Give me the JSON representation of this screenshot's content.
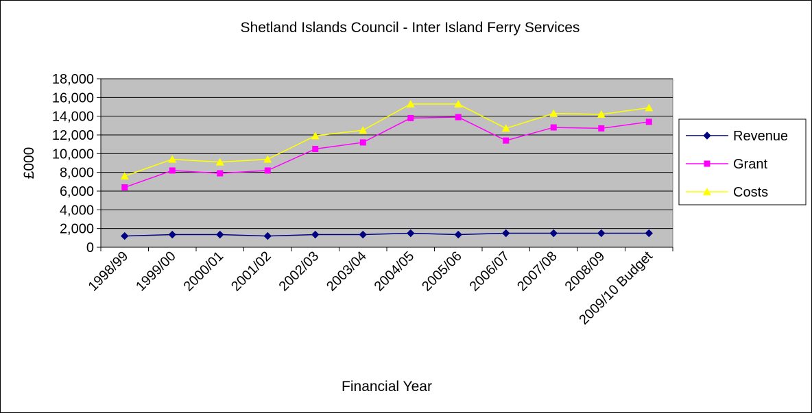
{
  "chart_data": {
    "type": "line",
    "title": "Shetland Islands Council - Inter Island  Ferry Services",
    "xlabel": "Financial Year",
    "ylabel": "£000",
    "categories": [
      "1998/99",
      "1999/00",
      "2000/01",
      "2001/02",
      "2002/03",
      "2003/04",
      "2004/05",
      "2005/06",
      "2006/07",
      "2007/08",
      "2008/09",
      "2009/10 Budget"
    ],
    "ylim": [
      0,
      18000
    ],
    "yticks": [
      0,
      2000,
      4000,
      6000,
      8000,
      10000,
      12000,
      14000,
      16000,
      18000
    ],
    "ytick_labels": [
      "0",
      "2,000",
      "4,000",
      "6,000",
      "8,000",
      "10,000",
      "12,000",
      "14,000",
      "16,000",
      "18,000"
    ],
    "grid": "horizontal",
    "plot_background": "#c0c0c0",
    "legend_position": "right",
    "series": [
      {
        "name": "Revenue",
        "color": "#000080",
        "marker": "diamond",
        "values": [
          1200,
          1350,
          1350,
          1200,
          1350,
          1350,
          1500,
          1350,
          1500,
          1500,
          1500,
          1500
        ]
      },
      {
        "name": "Grant",
        "color": "#ff00ff",
        "marker": "square",
        "values": [
          6400,
          8200,
          7900,
          8200,
          10500,
          11200,
          13800,
          13900,
          11400,
          12800,
          12700,
          13400
        ]
      },
      {
        "name": "Costs",
        "color": "#ffff00",
        "marker": "triangle",
        "values": [
          7600,
          9400,
          9100,
          9400,
          11900,
          12500,
          15300,
          15300,
          12700,
          14300,
          14200,
          14900
        ]
      }
    ]
  }
}
